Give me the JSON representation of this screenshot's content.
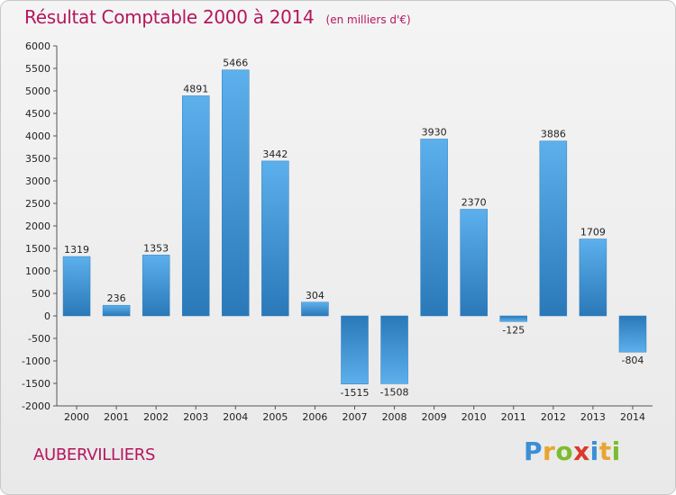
{
  "header": {
    "title": "Résultat Comptable 2000 à 2014",
    "subtitle": "(en milliers d'€)"
  },
  "footer": {
    "commune": "AUBERVILLIERS",
    "brand_letters": [
      "P",
      "r",
      "o",
      "x",
      "i",
      "t",
      "i"
    ],
    "brand_colors": [
      "#3a8fd8",
      "#e8a531",
      "#7bbd2f",
      "#d93a2b",
      "#3a8fd8",
      "#e8a531",
      "#7bbd2f"
    ]
  },
  "chart_data": {
    "type": "bar",
    "title": "Résultat Comptable 2000 à 2014",
    "xlabel": "",
    "ylabel": "",
    "categories": [
      "2000",
      "2001",
      "2002",
      "2003",
      "2004",
      "2005",
      "2006",
      "2007",
      "2008",
      "2009",
      "2010",
      "2011",
      "2012",
      "2013",
      "2014"
    ],
    "values": [
      1319,
      236,
      1353,
      4891,
      5466,
      3442,
      304,
      -1515,
      -1508,
      3930,
      2370,
      -125,
      3886,
      1709,
      -804
    ],
    "ylim": [
      -2000,
      6000
    ],
    "yticks": [
      6000,
      5500,
      5000,
      4500,
      4000,
      3500,
      3000,
      2500,
      2000,
      1500,
      1000,
      500,
      0,
      -500,
      -1000,
      -1500,
      -2000
    ],
    "grid": false,
    "bar_color": "#4a9fe0"
  }
}
